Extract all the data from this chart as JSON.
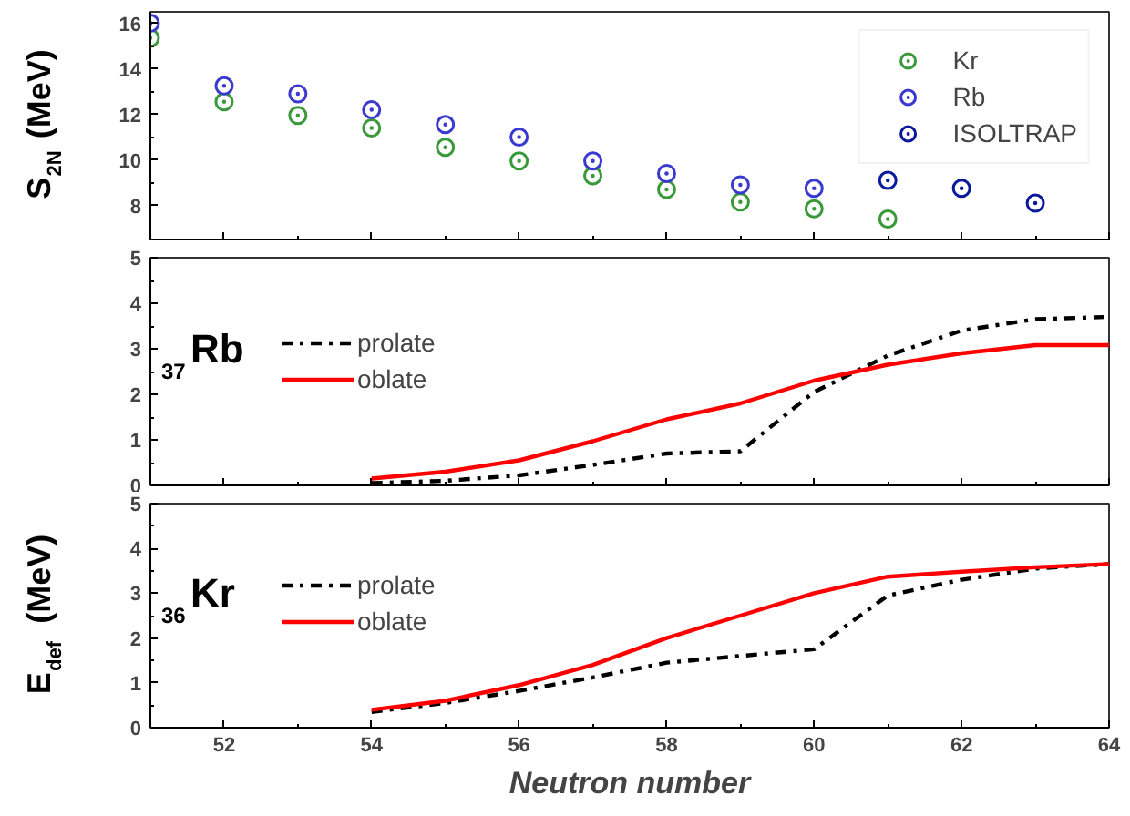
{
  "chart_data": [
    {
      "type": "scatter",
      "ylabel": "S$_{2N}$ (MeV)",
      "xlim": [
        51,
        64
      ],
      "xticks": [
        52,
        54,
        56,
        58,
        60,
        62,
        64
      ],
      "ylim": [
        6.5,
        16.5
      ],
      "yticks": [
        8,
        10,
        12,
        14,
        16
      ],
      "tick_labels": "y",
      "marker": "circle",
      "legend": "top right",
      "grid": false,
      "series": [
        {
          "name": "Kr",
          "color": "#3a9a3a",
          "x": [
            51,
            52,
            53,
            54,
            55,
            56,
            57,
            58,
            59,
            60,
            61
          ],
          "values": [
            15.35,
            12.55,
            11.95,
            11.4,
            10.55,
            9.95,
            9.3,
            8.7,
            8.15,
            7.85,
            7.4
          ]
        },
        {
          "name": "Rb",
          "color": "#3a3ad0",
          "x": [
            51,
            52,
            53,
            54,
            55,
            56,
            57,
            58,
            59,
            60
          ],
          "values": [
            16.0,
            13.25,
            12.9,
            12.2,
            11.55,
            11.0,
            9.95,
            9.4,
            8.9,
            8.75
          ]
        },
        {
          "name": "ISOLTRAP",
          "color": "#0a1a9a",
          "x": [
            61,
            62,
            63
          ],
          "values": [
            9.1,
            8.75,
            8.1
          ]
        }
      ]
    },
    {
      "type": "line",
      "annotations": [
        "$_{37}$Rb"
      ],
      "xlim": [
        51,
        64
      ],
      "xticks": [
        52,
        54,
        56,
        58,
        60,
        62,
        64
      ],
      "ylim": [
        0,
        5
      ],
      "yticks": [
        0,
        1,
        2,
        3,
        4,
        5
      ],
      "tick_labels": "y",
      "legend": "left",
      "grid": false,
      "x": [
        54,
        55,
        56,
        57,
        58,
        59,
        60,
        61,
        62,
        63,
        64
      ],
      "series": [
        {
          "name": "prolate",
          "color": "#000000",
          "line_style": "dashdot",
          "values": [
            0.05,
            0.1,
            0.22,
            0.45,
            0.7,
            0.75,
            2.05,
            2.85,
            3.4,
            3.65,
            3.7
          ]
        },
        {
          "name": "oblate",
          "color": "#ff0000",
          "line_style": "solid",
          "values": [
            0.15,
            0.3,
            0.55,
            0.97,
            1.45,
            1.8,
            2.3,
            2.65,
            2.9,
            3.08,
            3.08
          ]
        }
      ]
    },
    {
      "type": "line",
      "ylabel": "E$_{def}$ (MeV)",
      "xlabel": "Neutron number",
      "annotations": [
        "$_{36}$Kr"
      ],
      "xlim": [
        51,
        64
      ],
      "xticks": [
        52,
        54,
        56,
        58,
        60,
        62,
        64
      ],
      "ylim": [
        0,
        5
      ],
      "yticks": [
        0,
        1,
        2,
        3,
        4,
        5
      ],
      "legend": "left",
      "grid": false,
      "x": [
        54,
        55,
        56,
        57,
        58,
        59,
        60,
        61,
        62,
        63,
        64
      ],
      "series": [
        {
          "name": "prolate",
          "color": "#000000",
          "line_style": "dashdot",
          "values": [
            0.35,
            0.55,
            0.82,
            1.12,
            1.45,
            1.6,
            1.75,
            2.95,
            3.3,
            3.55,
            3.65
          ]
        },
        {
          "name": "oblate",
          "color": "#ff0000",
          "line_style": "solid",
          "values": [
            0.4,
            0.6,
            0.95,
            1.4,
            2.0,
            2.5,
            3.0,
            3.37,
            3.48,
            3.58,
            3.65
          ]
        }
      ]
    }
  ]
}
